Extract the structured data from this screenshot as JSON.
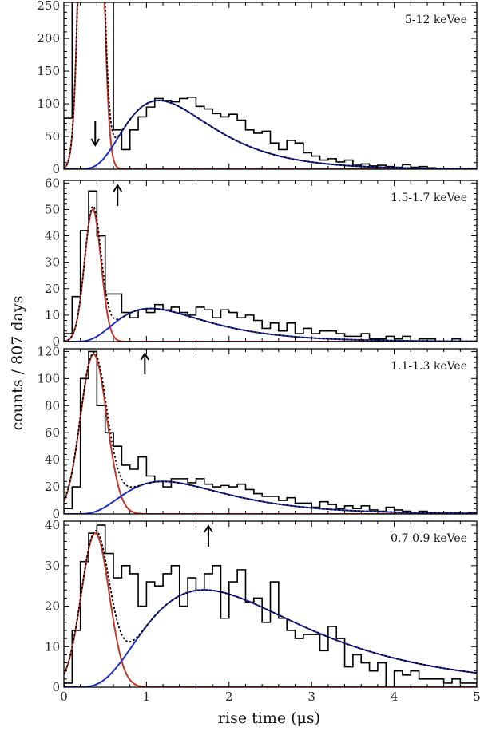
{
  "figure": {
    "ylabel": "counts / 807 days",
    "xlabel": "rise time (μs)"
  },
  "colors": {
    "histogram": "#000000",
    "fast_component": "#c0392b",
    "slow_component": "#1f2fbf",
    "total_fit": "#000000"
  },
  "chart_data": [
    {
      "type": "line",
      "label": "5-12 keVee",
      "xlim": [
        0,
        5
      ],
      "ylim": [
        0,
        255
      ],
      "yticks": [
        0,
        50,
        100,
        150,
        200,
        250
      ],
      "xticks": [
        0,
        1,
        2,
        3,
        4,
        5
      ],
      "arrow": {
        "x": 0.38,
        "direction": "down"
      },
      "fast": {
        "mu": 0.33,
        "sigma": 0.09,
        "amp": 1400
      },
      "slow": {
        "mode": 1.15,
        "sigma": 0.45,
        "amp": 105
      },
      "histogram": [
        78,
        600,
        600,
        600,
        600,
        260,
        60,
        30,
        60,
        80,
        95,
        108,
        105,
        103,
        108,
        110,
        96,
        92,
        85,
        80,
        84,
        75,
        60,
        55,
        58,
        40,
        30,
        44,
        40,
        25,
        20,
        14,
        16,
        11,
        14,
        6,
        8,
        5,
        6,
        4,
        3,
        7,
        3,
        4,
        2,
        1,
        0,
        1,
        0,
        1
      ]
    },
    {
      "type": "line",
      "label": "1.5-1.7 keVee",
      "xlim": [
        0,
        5
      ],
      "ylim": [
        0,
        61
      ],
      "yticks": [
        0,
        10,
        20,
        30,
        40,
        50,
        60
      ],
      "xticks": [
        0,
        1,
        2,
        3,
        4,
        5
      ],
      "arrow": {
        "x": 0.65,
        "direction": "up"
      },
      "fast": {
        "mu": 0.35,
        "sigma": 0.1,
        "amp": 50
      },
      "slow": {
        "mode": 1.05,
        "sigma": 0.5,
        "amp": 12.5
      },
      "histogram": [
        3,
        17,
        42,
        57,
        40,
        18,
        18,
        11,
        9,
        12,
        11,
        14,
        12,
        13,
        11,
        10,
        13,
        12,
        9,
        12,
        11,
        9,
        10,
        8,
        5,
        7,
        4,
        7,
        3,
        5,
        3,
        4,
        4,
        3,
        2,
        2,
        3,
        1,
        1,
        2,
        1,
        2,
        0,
        1,
        1,
        0,
        0,
        1,
        0,
        0
      ]
    },
    {
      "type": "line",
      "label": "1.1-1.3 keVee",
      "xlim": [
        0,
        5
      ],
      "ylim": [
        0,
        122
      ],
      "yticks": [
        0,
        20,
        40,
        60,
        80,
        100,
        120
      ],
      "xticks": [
        0,
        1,
        2,
        3,
        4,
        5
      ],
      "arrow": {
        "x": 0.98,
        "direction": "up"
      },
      "fast": {
        "mu": 0.36,
        "sigma": 0.16,
        "amp": 118
      },
      "slow": {
        "mode": 1.2,
        "sigma": 0.5,
        "amp": 24
      },
      "histogram": [
        4,
        20,
        100,
        120,
        80,
        60,
        50,
        36,
        33,
        42,
        28,
        24,
        20,
        26,
        26,
        23,
        26,
        22,
        20,
        21,
        20,
        22,
        18,
        15,
        13,
        13,
        10,
        12,
        8,
        8,
        5,
        9,
        7,
        4,
        6,
        4,
        6,
        3,
        2,
        5,
        3,
        2,
        1,
        2,
        1,
        0,
        1,
        1,
        0,
        1
      ]
    },
    {
      "type": "line",
      "label": "0.7-0.9 keVee",
      "xlim": [
        0,
        5
      ],
      "ylim": [
        0,
        41
      ],
      "yticks": [
        0,
        10,
        20,
        30,
        40
      ],
      "xticks": [
        0,
        1,
        2,
        3,
        4,
        5
      ],
      "arrow": {
        "x": 1.75,
        "direction": "up"
      },
      "fast": {
        "mu": 0.38,
        "sigma": 0.17,
        "amp": 38
      },
      "slow": {
        "mode": 1.7,
        "sigma": 0.55,
        "amp": 24
      },
      "histogram": [
        1,
        14,
        31,
        38,
        40,
        33,
        27,
        30,
        28,
        20,
        26,
        25,
        28,
        30,
        20,
        27,
        24,
        28,
        30,
        17,
        26,
        29,
        21,
        22,
        16,
        26,
        17,
        14,
        12,
        13,
        13,
        9,
        15,
        12,
        5,
        8,
        6,
        4,
        6,
        0,
        4,
        3,
        4,
        2,
        2,
        2,
        1,
        2,
        1,
        1
      ]
    }
  ]
}
